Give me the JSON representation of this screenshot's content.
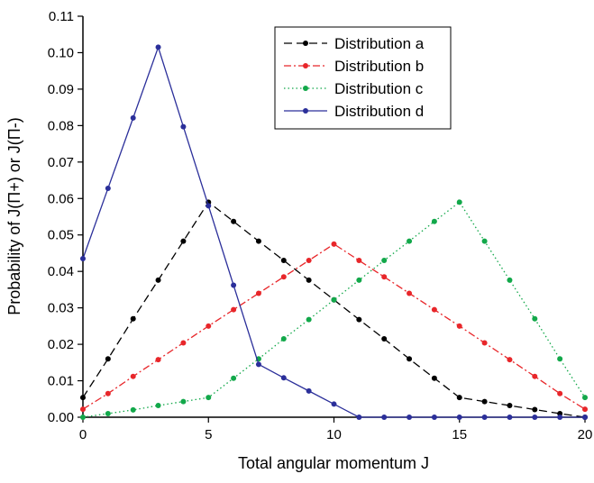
{
  "chart_data": {
    "type": "line",
    "x_label": "Total angular momentum J",
    "y_label": "Probability of J(Π+) or J(Π-)",
    "x": [
      0,
      1,
      2,
      3,
      4,
      5,
      6,
      7,
      8,
      9,
      10,
      11,
      12,
      13,
      14,
      15,
      16,
      17,
      18,
      19,
      20
    ],
    "series": [
      {
        "name": "Distribution a",
        "color": "#000000",
        "line_style": "dashed",
        "values": [
          0.0054,
          0.016,
          0.027,
          0.0376,
          0.0483,
          0.059,
          0.0537,
          0.0483,
          0.043,
          0.0376,
          0.0322,
          0.0268,
          0.0215,
          0.016,
          0.0107,
          0.0054,
          0.0043,
          0.0032,
          0.0021,
          0.001,
          0
        ]
      },
      {
        "name": "Distribution b",
        "color": "#e8262a",
        "line_style": "dashdot",
        "values": [
          0.0022,
          0.0065,
          0.0112,
          0.0158,
          0.0204,
          0.025,
          0.0295,
          0.034,
          0.0385,
          0.043,
          0.0475,
          0.043,
          0.0385,
          0.034,
          0.0295,
          0.025,
          0.0204,
          0.0158,
          0.0112,
          0.0065,
          0.0022
        ]
      },
      {
        "name": "Distribution c",
        "color": "#12a84a",
        "line_style": "dotted",
        "values": [
          0,
          0.001,
          0.002,
          0.0032,
          0.0043,
          0.0054,
          0.0107,
          0.016,
          0.0215,
          0.0268,
          0.0322,
          0.0376,
          0.043,
          0.0483,
          0.0537,
          0.059,
          0.0483,
          0.0376,
          0.027,
          0.016,
          0.0054
        ]
      },
      {
        "name": "Distribution d",
        "color": "#2b2f9a",
        "line_style": "solid",
        "values": [
          0.0435,
          0.0628,
          0.0821,
          0.1015,
          0.0797,
          0.058,
          0.0362,
          0.0145,
          0.0108,
          0.0072,
          0.0036,
          0,
          0,
          0,
          0,
          0,
          0,
          0,
          0,
          0,
          0
        ]
      }
    ],
    "xlim": [
      0,
      20
    ],
    "ylim": [
      0,
      0.11
    ],
    "xticks": [
      0,
      5,
      10,
      15,
      20
    ],
    "yticks": [
      {
        "value": 0,
        "label": "0.00"
      },
      {
        "value": 0.01,
        "label": "0.01"
      },
      {
        "value": 0.02,
        "label": "0.02"
      },
      {
        "value": 0.03,
        "label": "0.03"
      },
      {
        "value": 0.04,
        "label": "0.04"
      },
      {
        "value": 0.05,
        "label": "0.05"
      },
      {
        "value": 0.06,
        "label": "0.06"
      },
      {
        "value": 0.07,
        "label": "0.07"
      },
      {
        "value": 0.08,
        "label": "0.08"
      },
      {
        "value": 0.09,
        "label": "0.09"
      },
      {
        "value": 0.1,
        "label": "0.10"
      },
      {
        "value": 0.11,
        "label": "0.11"
      }
    ],
    "legend": "upper-right"
  }
}
